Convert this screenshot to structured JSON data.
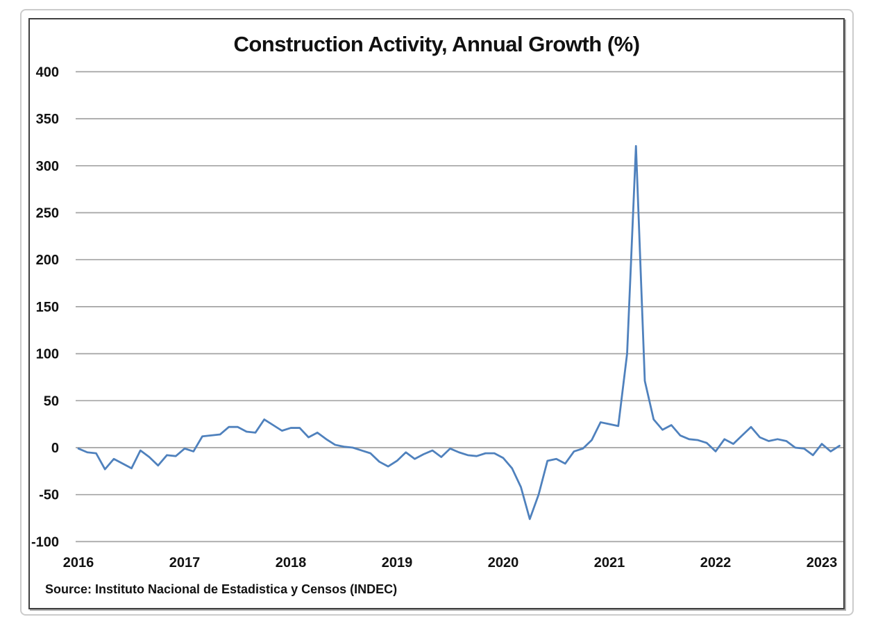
{
  "title": "Construction Activity, Annual Growth (%)",
  "source_note": "Source:  Instituto Nacional de Estadistica y Censos (INDEC)",
  "colors": {
    "line": "#4f81bd",
    "gridline": "#a3a3a3",
    "text": "#111111",
    "panel_border": "#3f3f3f",
    "frame_border": "#cbcbcb"
  },
  "chart_data": {
    "type": "line",
    "title": "Construction Activity, Annual Growth (%)",
    "source": "Source:  Instituto Nacional de Estadistica y Censos (INDEC)",
    "frequency": "monthly",
    "x_start": "2016-01",
    "x_end": "2023-03",
    "x_tick_labels": [
      "2016",
      "2017",
      "2018",
      "2019",
      "2020",
      "2021",
      "2022",
      "2023"
    ],
    "y_ticks": [
      400,
      350,
      300,
      250,
      200,
      150,
      100,
      50,
      0,
      -50,
      -100
    ],
    "ylim": [
      -100,
      400
    ],
    "grid": true,
    "legend": "none",
    "series": [
      {
        "name": "Construction activity, annual growth (%)",
        "values": [
          -1,
          -5,
          -6,
          -23,
          -12,
          -17,
          -22,
          -3,
          -10,
          -19,
          -8,
          -9,
          -1,
          -4,
          12,
          13,
          14,
          22,
          22,
          17,
          16,
          30,
          24,
          18,
          21,
          21,
          11,
          16,
          9,
          3,
          1,
          0,
          -3,
          -6,
          -15,
          -20,
          -14,
          -5,
          -12,
          -7,
          -3,
          -10,
          -1,
          -5,
          -8,
          -9,
          -6,
          -6,
          -11,
          -22,
          -42,
          -76,
          -50,
          -14,
          -12,
          -17,
          -4,
          -1,
          8,
          27,
          25,
          23,
          100,
          321,
          71,
          30,
          19,
          24,
          13,
          9,
          8,
          5,
          -4,
          9,
          4,
          13,
          22,
          11,
          7,
          9,
          7,
          0,
          -1,
          -8,
          4,
          -4,
          2
        ]
      }
    ]
  }
}
